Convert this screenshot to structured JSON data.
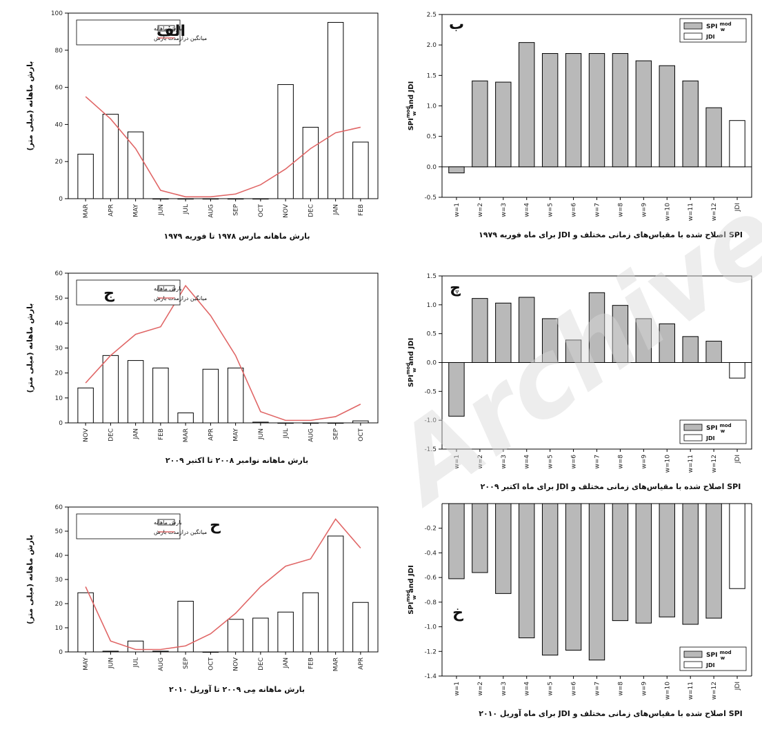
{
  "legend": {
    "monthly_precip": "بارش ماهانه",
    "longterm_mean": "میانگین درازمدت بارش",
    "spi_label": "SPI",
    "spi_sup": "mod",
    "spi_sub": "w",
    "jdi": "JDI"
  },
  "left_ylabel": "بارش ماهانه (میلی متر)",
  "right_ylabel": "SPI",
  "right_ylabel_sup": "mod",
  "right_ylabel_sub": "w",
  "right_ylabel_tail": " and JDI",
  "watermark": "Archive of SID",
  "chart_data": [
    {
      "id": "alef",
      "type": "bar",
      "panel_letter": "الف",
      "xlabel": "بارش ماهانه مارس ۱۹۷۸ تا فوریه ۱۹۷۹",
      "categories": [
        "MAR",
        "APR",
        "MAY",
        "JUN",
        "JUL",
        "AUG",
        "SEP",
        "OCT",
        "NOV",
        "DEC",
        "JAN",
        "FEB"
      ],
      "ylim": [
        0,
        100
      ],
      "yticks": [
        0,
        20,
        40,
        60,
        80,
        100
      ],
      "series": [
        {
          "name": "بارش ماهانه",
          "kind": "bar",
          "values": [
            24,
            45.5,
            36,
            0,
            0,
            0,
            0,
            0,
            61.5,
            38.5,
            95,
            30.5
          ]
        },
        {
          "name": "میانگین درازمدت بارش",
          "kind": "line",
          "color": "#e06666",
          "values": [
            55,
            43,
            27,
            4.5,
            1,
            1,
            2.5,
            7.5,
            16,
            27,
            35.5,
            38.5
          ]
        }
      ]
    },
    {
      "id": "be",
      "type": "bar",
      "panel_letter": "ب",
      "xlabel": "SPI اصلاح شده با مقیاس‌های زمانی مختلف و JDI برای ماه فوریه ۱۹۷۹",
      "categories": [
        "w=1",
        "w=2",
        "w=3",
        "w=4",
        "w=5",
        "w=6",
        "w=7",
        "w=8",
        "w=9",
        "w=10",
        "w=11",
        "w=12",
        "JDI"
      ],
      "ylim": [
        -0.5,
        2.5
      ],
      "yticks": [
        "-0.5",
        "0.0",
        "0.5",
        "1.0",
        "1.5",
        "2.0",
        "2.5"
      ],
      "values": [
        -0.1,
        1.41,
        1.39,
        2.04,
        1.86,
        1.86,
        1.86,
        1.86,
        1.74,
        1.66,
        1.41,
        0.97,
        0.76
      ],
      "legend_position": "top-right"
    },
    {
      "id": "jim",
      "type": "bar",
      "panel_letter": "ج",
      "xlabel": "بارش ماهانه نوامبر ۲۰۰۸ تا اکتبر ۲۰۰۹",
      "categories": [
        "NOV",
        "DEC",
        "JAN",
        "FEB",
        "MAR",
        "APR",
        "MAY",
        "JUN",
        "JUL",
        "AUG",
        "SEP",
        "OCT"
      ],
      "ylim": [
        0,
        60
      ],
      "yticks": [
        0,
        10,
        20,
        30,
        40,
        50,
        60
      ],
      "series": [
        {
          "name": "بارش ماهانه",
          "kind": "bar",
          "values": [
            14,
            27,
            25,
            22,
            4,
            21.5,
            22,
            0.3,
            0,
            0,
            0,
            0.8
          ]
        },
        {
          "name": "میانگین درازمدت بارش",
          "kind": "line",
          "color": "#e06666",
          "values": [
            16,
            27,
            35.5,
            38.5,
            55,
            43,
            27,
            4.5,
            1,
            1,
            2.5,
            7.5
          ]
        }
      ]
    },
    {
      "id": "che",
      "type": "bar",
      "panel_letter": "چ",
      "xlabel": "SPI اصلاح شده با مقیاس‌های زمانی مختلف و JDI برای ماه اکتبر ۲۰۰۹",
      "categories": [
        "w=1",
        "w=2",
        "w=3",
        "w=4",
        "w=5",
        "w=6",
        "w=7",
        "w=8",
        "w=9",
        "w=10",
        "w=11",
        "w=12",
        "JDI"
      ],
      "ylim": [
        -1.5,
        1.5
      ],
      "yticks": [
        "-1.5",
        "-1.0",
        "-0.5",
        "0.0",
        "0.5",
        "1.0",
        "1.5"
      ],
      "values": [
        -0.93,
        1.11,
        1.03,
        1.13,
        0.76,
        0.39,
        1.21,
        0.99,
        0.76,
        0.67,
        0.45,
        0.37,
        -0.27
      ],
      "legend_position": "bottom-right"
    },
    {
      "id": "he",
      "type": "bar",
      "panel_letter": "ح",
      "xlabel": "بارش ماهانه مِی ۲۰۰۹ تا آوریل ۲۰۱۰",
      "categories": [
        "MAY",
        "JUN",
        "JUL",
        "AUG",
        "SEP",
        "OCT",
        "NOV",
        "DEC",
        "JAN",
        "FEB",
        "MAR",
        "APR"
      ],
      "ylim": [
        0,
        60
      ],
      "yticks": [
        0,
        10,
        20,
        30,
        40,
        50,
        60
      ],
      "series": [
        {
          "name": "بارش ماهانه",
          "kind": "bar",
          "values": [
            24.5,
            0.3,
            4.5,
            0.3,
            21,
            0,
            13.5,
            14,
            16.5,
            24.5,
            48,
            20.5
          ]
        },
        {
          "name": "میانگین درازمدت بارش",
          "kind": "line",
          "color": "#e06666",
          "values": [
            27,
            4.5,
            1,
            1,
            2.5,
            7.5,
            16,
            27,
            35.5,
            38.5,
            55,
            43
          ]
        }
      ]
    },
    {
      "id": "khe",
      "type": "bar",
      "panel_letter": "خ",
      "xlabel": "SPI اصلاح شده با مقیاس‌های زمانی مختلف و JDI برای ماه آوریل ۲۰۱۰",
      "categories": [
        "w=1",
        "w=2",
        "w=3",
        "w=4",
        "w=5",
        "w=6",
        "w=7",
        "w=8",
        "w=9",
        "w=10",
        "w=11",
        "w=12",
        "JDI"
      ],
      "ylim": [
        -1.4,
        0
      ],
      "yticks": [
        "-1.4",
        "-1.2",
        "-1.0",
        "-0.8",
        "-0.6",
        "-0.4",
        "-0.2"
      ],
      "values": [
        -0.61,
        -0.56,
        -0.73,
        -1.09,
        -1.23,
        -1.19,
        -1.27,
        -0.95,
        -0.97,
        -0.92,
        -0.98,
        -0.93,
        -0.69
      ],
      "legend_position": "bottom-right"
    }
  ]
}
